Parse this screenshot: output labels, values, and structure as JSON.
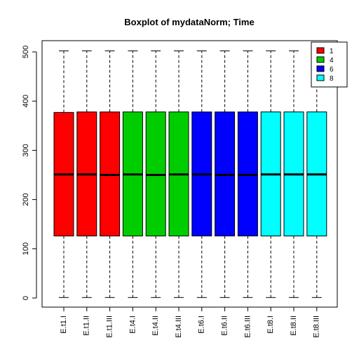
{
  "chart_data": {
    "type": "boxplot",
    "title": "Boxplot of mydataNorm; Time",
    "xlabel": "",
    "ylabel": "",
    "ylim": [
      0,
      500
    ],
    "yticks": [
      0,
      100,
      200,
      300,
      400,
      500
    ],
    "grid": false,
    "legend_position": "top-right",
    "legend": [
      {
        "label": "1",
        "color": "#ff0000"
      },
      {
        "label": "4",
        "color": "#00cd00"
      },
      {
        "label": "6",
        "color": "#0000ff"
      },
      {
        "label": "8",
        "color": "#00ffff"
      }
    ],
    "boxes": [
      {
        "label": "E.t1.I",
        "group": "1",
        "color": "#ff0000",
        "min": 1,
        "q1": 126,
        "median": 251,
        "q3": 377,
        "max": 502
      },
      {
        "label": "E.t1.II",
        "group": "1",
        "color": "#ff0000",
        "min": 1,
        "q1": 126,
        "median": 251,
        "q3": 378,
        "max": 502
      },
      {
        "label": "E.t1.III",
        "group": "1",
        "color": "#ff0000",
        "min": 1,
        "q1": 126,
        "median": 250,
        "q3": 378,
        "max": 502
      },
      {
        "label": "E.t4.I",
        "group": "4",
        "color": "#00cd00",
        "min": 1,
        "q1": 126,
        "median": 251,
        "q3": 378,
        "max": 502
      },
      {
        "label": "E.t4.II",
        "group": "4",
        "color": "#00cd00",
        "min": 1,
        "q1": 126,
        "median": 250,
        "q3": 378,
        "max": 502
      },
      {
        "label": "E.t4.III",
        "group": "4",
        "color": "#00cd00",
        "min": 1,
        "q1": 126,
        "median": 251,
        "q3": 378,
        "max": 502
      },
      {
        "label": "E.t6.I",
        "group": "6",
        "color": "#0000ff",
        "min": 1,
        "q1": 126,
        "median": 251,
        "q3": 378,
        "max": 502
      },
      {
        "label": "E.t6.II",
        "group": "6",
        "color": "#0000ff",
        "min": 1,
        "q1": 126,
        "median": 250,
        "q3": 378,
        "max": 502
      },
      {
        "label": "E.t6.III",
        "group": "6",
        "color": "#0000ff",
        "min": 1,
        "q1": 126,
        "median": 250,
        "q3": 378,
        "max": 502
      },
      {
        "label": "E.t8.I",
        "group": "8",
        "color": "#00ffff",
        "min": 1,
        "q1": 126,
        "median": 251,
        "q3": 378,
        "max": 502
      },
      {
        "label": "E.t8.II",
        "group": "8",
        "color": "#00ffff",
        "min": 1,
        "q1": 126,
        "median": 251,
        "q3": 378,
        "max": 502
      },
      {
        "label": "E.t8.III",
        "group": "8",
        "color": "#00ffff",
        "min": 1,
        "q1": 126,
        "median": 251,
        "q3": 378,
        "max": 502
      }
    ]
  }
}
